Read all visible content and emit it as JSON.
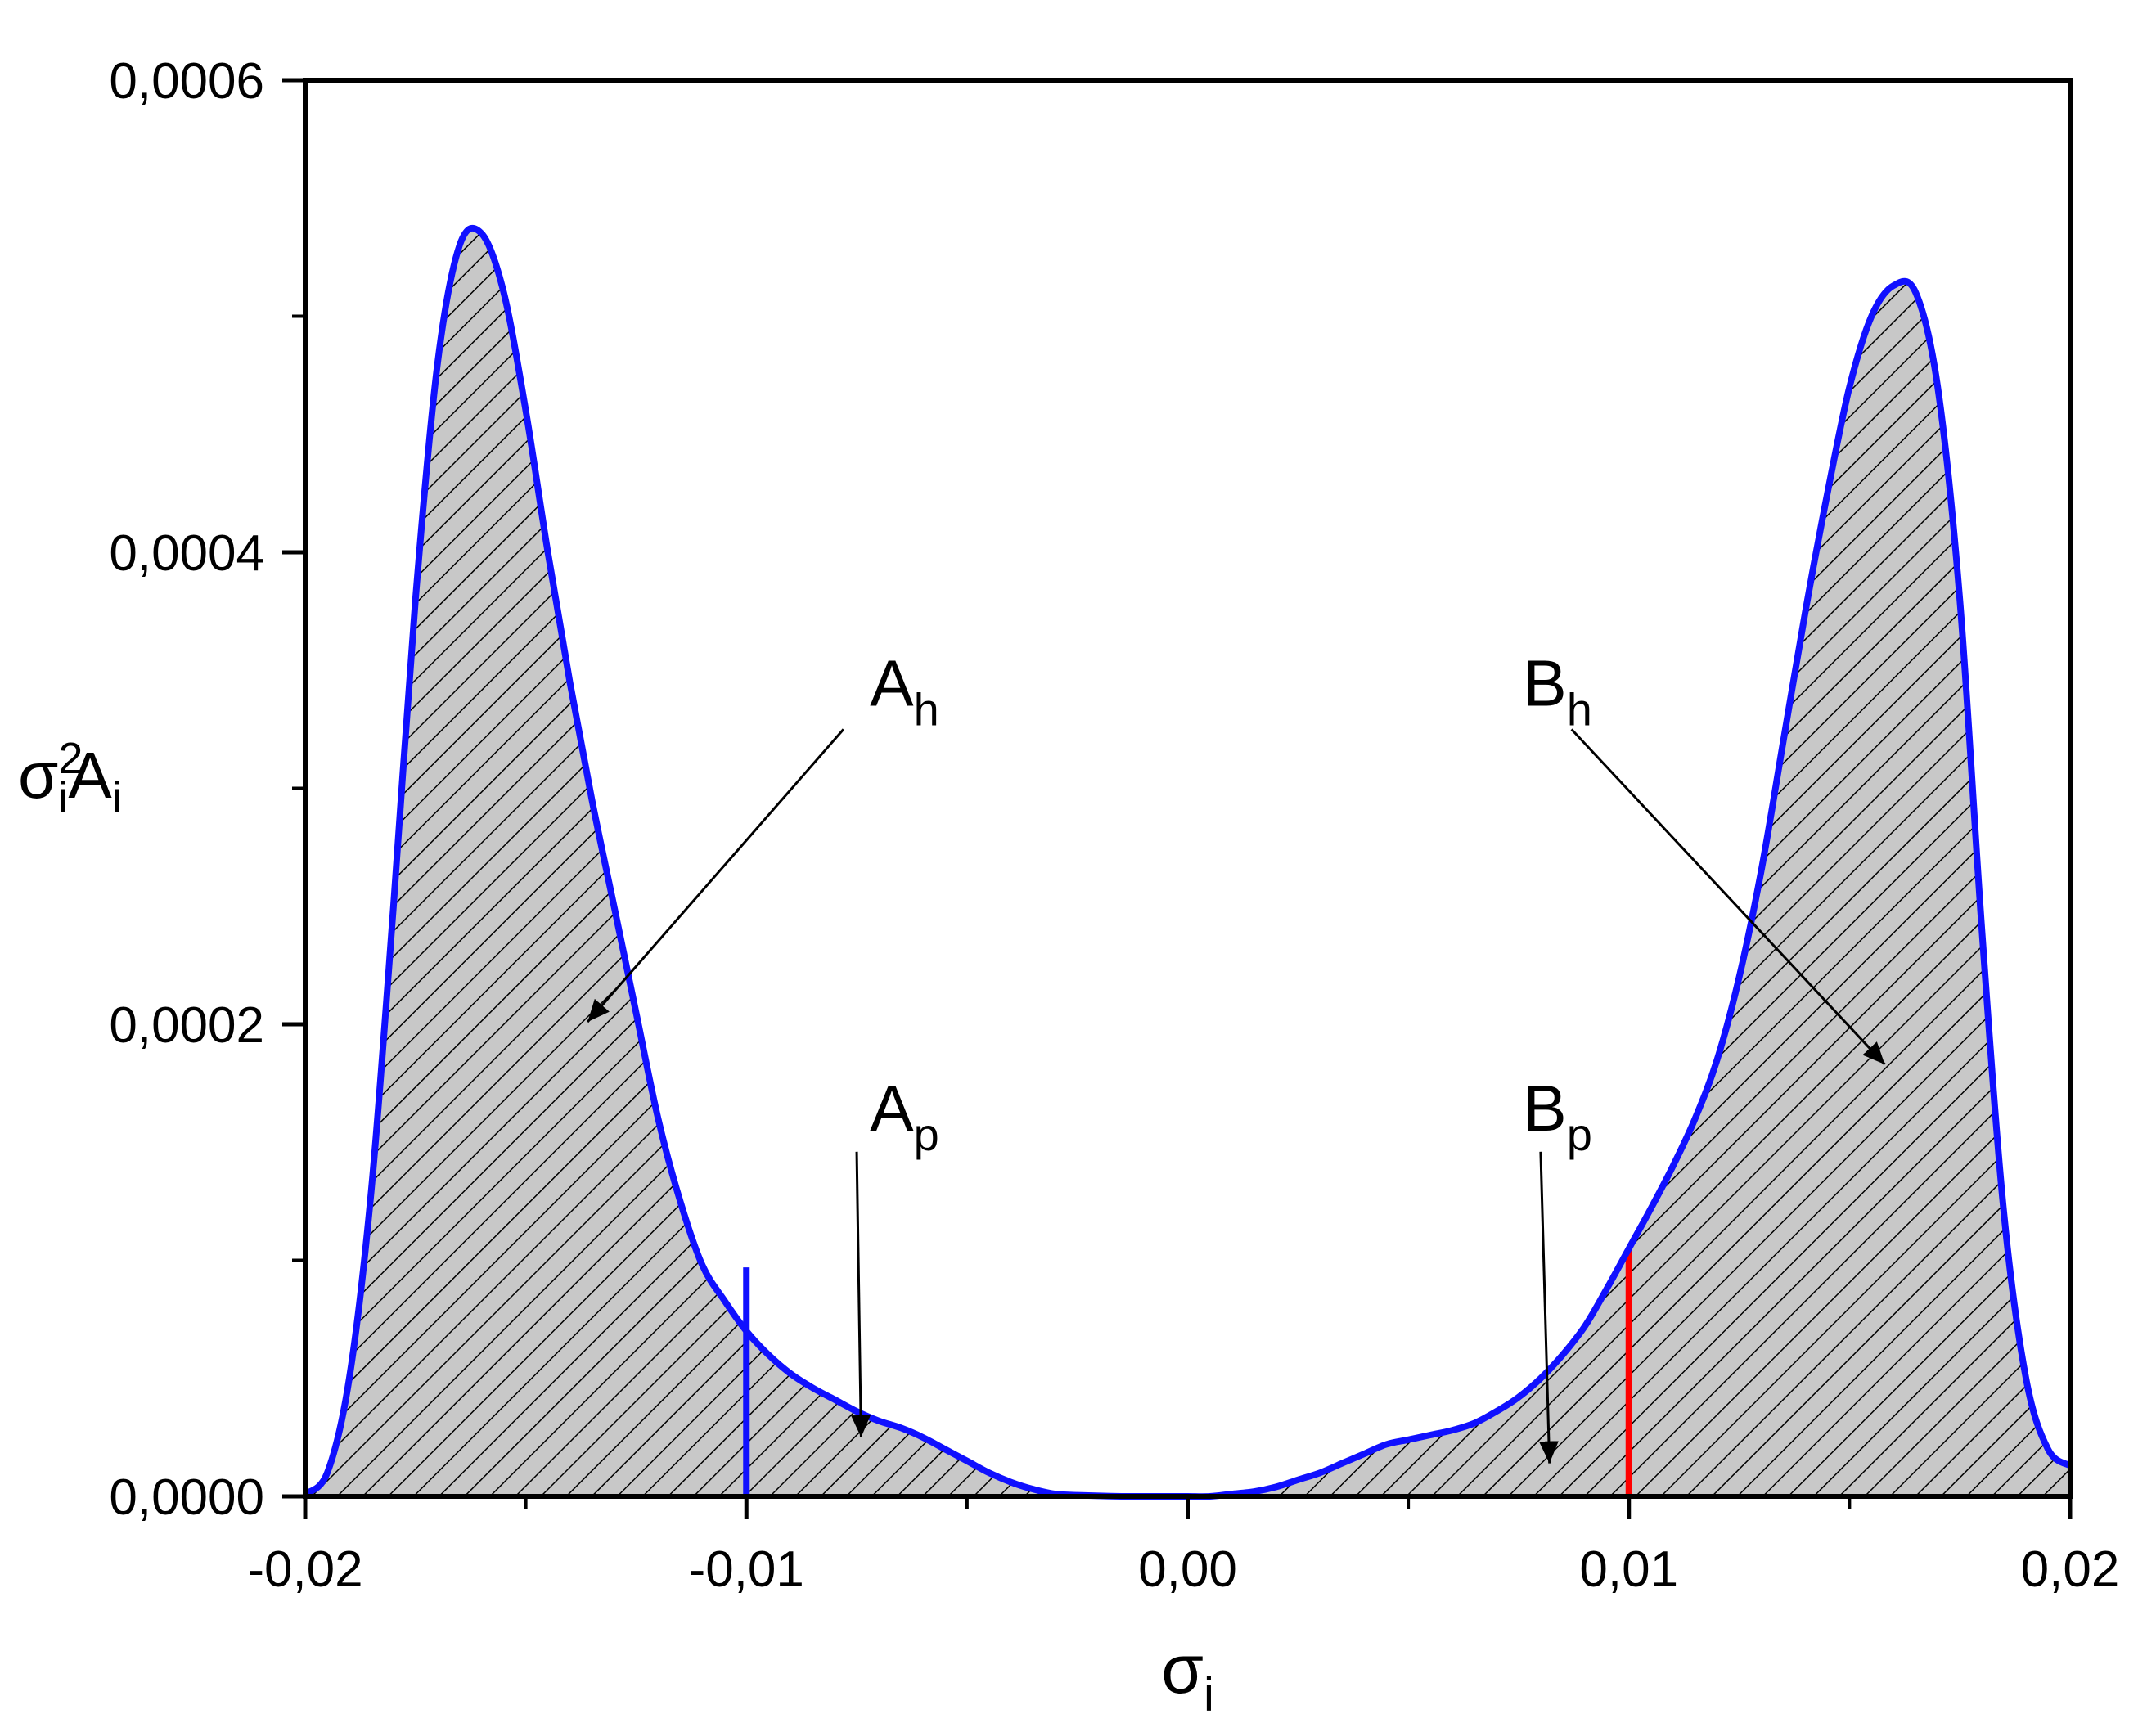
{
  "chart_data": {
    "type": "area",
    "title": "",
    "xlabel": "σ",
    "xlabel_sub": "i",
    "ylabel_parts": {
      "sigma": "σ",
      "sup": "2",
      "sub1": "i",
      "A": "A",
      "sub2": "i"
    },
    "xlim": [
      -0.02,
      0.02
    ],
    "ylim": [
      0,
      0.0006
    ],
    "xticks": [
      -0.02,
      -0.01,
      0.0,
      0.01,
      0.02
    ],
    "xtick_labels": [
      "-0,02",
      "-0,01",
      "0,00",
      "0,01",
      "0,02"
    ],
    "yticks": [
      0,
      0.0002,
      0.0004,
      0.0006
    ],
    "ytick_labels": [
      "0,0000",
      "0,0002",
      "0,0004",
      "0,0006"
    ],
    "grid": false,
    "series": [
      {
        "color": "#1010ff",
        "fill": "hatched-gray",
        "x": [
          -0.02,
          -0.0195,
          -0.019,
          -0.0185,
          -0.018,
          -0.0175,
          -0.017,
          -0.0165,
          -0.016,
          -0.0155,
          -0.015,
          -0.0145,
          -0.014,
          -0.0135,
          -0.013,
          -0.0125,
          -0.012,
          -0.0115,
          -0.011,
          -0.0105,
          -0.01,
          -0.0095,
          -0.009,
          -0.0085,
          -0.008,
          -0.0075,
          -0.007,
          -0.0065,
          -0.006,
          -0.0055,
          -0.005,
          -0.0045,
          -0.004,
          -0.0035,
          -0.003,
          -0.0025,
          -0.002,
          -0.0015,
          -0.001,
          -0.0005,
          0.0,
          0.0005,
          0.001,
          0.0015,
          0.002,
          0.0025,
          0.003,
          0.0035,
          0.004,
          0.0045,
          0.005,
          0.0055,
          0.006,
          0.0065,
          0.007,
          0.0075,
          0.008,
          0.0085,
          0.009,
          0.0095,
          0.01,
          0.0105,
          0.011,
          0.0115,
          0.012,
          0.0125,
          0.013,
          0.0135,
          0.014,
          0.0145,
          0.015,
          0.0155,
          0.016,
          0.0165,
          0.017,
          0.0175,
          0.018,
          0.0185,
          0.019,
          0.0195,
          0.02
        ],
        "y": [
          1e-06,
          1e-05,
          5e-05,
          0.00013,
          0.00025,
          0.00038,
          0.00048,
          0.00053,
          0.000535,
          0.00051,
          0.00046,
          0.0004,
          0.000345,
          0.000295,
          0.00025,
          0.000205,
          0.00016,
          0.000125,
          9.8e-05,
          8.3e-05,
          7e-05,
          6e-05,
          5.2e-05,
          4.6e-05,
          4.1e-05,
          3.6e-05,
          3.2e-05,
          2.9e-05,
          2.5e-05,
          2e-05,
          1.5e-05,
          1e-05,
          6e-06,
          3e-06,
          1e-06,
          5e-07,
          2e-07,
          0.0,
          0.0,
          0.0,
          0.0,
          0.0,
          1e-06,
          2e-06,
          4e-06,
          7e-06,
          1e-05,
          1.4e-05,
          1.8e-05,
          2.2e-05,
          2.4e-05,
          2.6e-05,
          2.8e-05,
          3.1e-05,
          3.6e-05,
          4.2e-05,
          5e-05,
          6e-05,
          7.2e-05,
          8.8e-05,
          0.000105,
          0.000122,
          0.00014,
          0.00016,
          0.000185,
          0.00022,
          0.000265,
          0.00032,
          0.000375,
          0.000425,
          0.00047,
          0.0005,
          0.000513,
          0.00051,
          0.00047,
          0.00038,
          0.00024,
          0.00012,
          5e-05,
          2e-05,
          1.3e-05
        ]
      }
    ],
    "markers": [
      {
        "x": -0.01,
        "y_top": 9.7e-05,
        "color": "#1010ff"
      },
      {
        "x": 0.01,
        "y_top": 0.000105,
        "color": "#ff0000"
      }
    ],
    "annotations": [
      {
        "label": "A",
        "sub": "h",
        "text_x": -0.0072,
        "text_y": 0.000335,
        "arrow_from": [
          -0.0078,
          0.000325
        ],
        "arrow_to": [
          -0.0136,
          0.000201
        ]
      },
      {
        "label": "A",
        "sub": "p",
        "text_x": -0.0072,
        "text_y": 0.000155,
        "arrow_from": [
          -0.0075,
          0.000146
        ],
        "arrow_to": [
          -0.0074,
          2.5e-05
        ]
      },
      {
        "label": "B",
        "sub": "h",
        "text_x": 0.0076,
        "text_y": 0.000335,
        "arrow_from": [
          0.0087,
          0.000325
        ],
        "arrow_to": [
          0.0158,
          0.000183
        ]
      },
      {
        "label": "B",
        "sub": "p",
        "text_x": 0.0076,
        "text_y": 0.000155,
        "arrow_from": [
          0.008,
          0.000146
        ],
        "arrow_to": [
          0.0082,
          1.4e-05
        ]
      }
    ]
  }
}
